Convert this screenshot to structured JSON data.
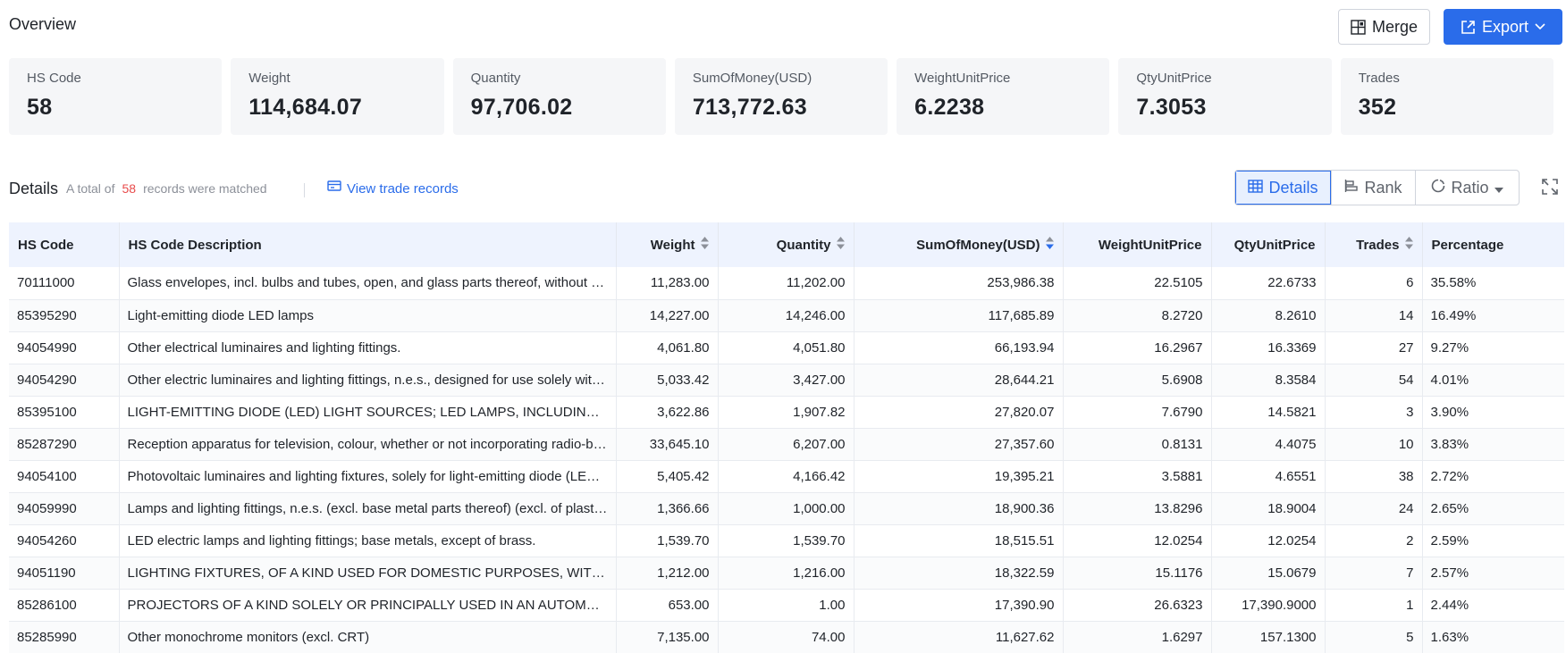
{
  "header": {
    "title": "Overview",
    "merge_label": "Merge",
    "export_label": "Export"
  },
  "stats": [
    {
      "label": "HS Code",
      "value": "58"
    },
    {
      "label": "Weight",
      "value": "114,684.07"
    },
    {
      "label": "Quantity",
      "value": "97,706.02"
    },
    {
      "label": "SumOfMoney(USD)",
      "value": "713,772.63"
    },
    {
      "label": "WeightUnitPrice",
      "value": "6.2238"
    },
    {
      "label": "QtyUnitPrice",
      "value": "7.3053"
    },
    {
      "label": "Trades",
      "value": "352"
    }
  ],
  "details": {
    "title": "Details",
    "summary_prefix": "A total of",
    "count": "58",
    "summary_suffix": "records were matched",
    "view_link": "View trade records",
    "tabs": [
      "Details",
      "Rank",
      "Ratio"
    ],
    "active_tab": "Details"
  },
  "colors": {
    "accent": "#2a6cea",
    "count_red": "#e84b4b",
    "header_bg": "#eef3fe",
    "card_bg": "#f5f6f8"
  },
  "table": {
    "columns": [
      "HS Code",
      "HS Code Description",
      "Weight",
      "Quantity",
      "SumOfMoney(USD)",
      "WeightUnitPrice",
      "QtyUnitPrice",
      "Trades",
      "Percentage"
    ],
    "rows": [
      [
        "70111000",
        "Glass envelopes, incl. bulbs and tubes, open, and glass parts thereof, without fittings, for electric lighting",
        "11,283.00",
        "11,202.00",
        "253,986.38",
        "22.5105",
        "22.6733",
        "6",
        "35.58%"
      ],
      [
        "85395290",
        "Light-emitting diode LED lamps",
        "14,227.00",
        "14,246.00",
        "117,685.89",
        "8.2720",
        "8.2610",
        "14",
        "16.49%"
      ],
      [
        "94054990",
        "Other electrical luminaires and lighting fittings.",
        "4,061.80",
        "4,051.80",
        "66,193.94",
        "16.2967",
        "16.3369",
        "27",
        "9.27%"
      ],
      [
        "94054290",
        "Other electric luminaires and lighting fittings, n.e.s., designed for use solely with light-emitting diode (LED) light sources",
        "5,033.42",
        "3,427.00",
        "28,644.21",
        "5.6908",
        "8.3584",
        "54",
        "4.01%"
      ],
      [
        "85395100",
        "LIGHT-EMITTING DIODE (LED) LIGHT SOURCES; LED LAMPS, INCLUDING LED MODULES",
        "3,622.86",
        "1,907.82",
        "27,820.07",
        "7.6790",
        "14.5821",
        "3",
        "3.90%"
      ],
      [
        "85287290",
        "Reception apparatus for television, colour, whether or not incorporating radio-broadcast receivers",
        "33,645.10",
        "6,207.00",
        "27,357.60",
        "0.8131",
        "4.4075",
        "10",
        "3.83%"
      ],
      [
        "94054100",
        "Photovoltaic luminaires and lighting fixtures, solely for light-emitting diode (LED) light sources",
        "5,405.42",
        "4,166.42",
        "19,395.21",
        "3.5881",
        "4.6551",
        "38",
        "2.72%"
      ],
      [
        "94059990",
        "Lamps and lighting fittings, n.e.s. (excl. base metal parts thereof) (excl. of plastics)",
        "1,366.66",
        "1,000.00",
        "18,900.36",
        "13.8296",
        "18.9004",
        "24",
        "2.65%"
      ],
      [
        "94054260",
        "LED electric lamps and lighting fittings; base metals, except of brass.",
        "1,539.70",
        "1,539.70",
        "18,515.51",
        "12.0254",
        "12.0254",
        "2",
        "2.59%"
      ],
      [
        "94051190",
        "LIGHTING FIXTURES, OF A KIND USED FOR DOMESTIC PURPOSES, WITH LED LIGHT SOURCES",
        "1,212.00",
        "1,216.00",
        "18,322.59",
        "15.1176",
        "15.0679",
        "7",
        "2.57%"
      ],
      [
        "85286100",
        "PROJECTORS OF A KIND SOLELY OR PRINCIPALLY USED IN AN AUTOMATIC DATA PROCESSING SYSTEM",
        "653.00",
        "1.00",
        "17,390.90",
        "26.6323",
        "17,390.9000",
        "1",
        "2.44%"
      ],
      [
        "85285990",
        "Other monochrome monitors (excl. CRT)",
        "7,135.00",
        "74.00",
        "11,627.62",
        "1.6297",
        "157.1300",
        "5",
        "1.63%"
      ]
    ]
  }
}
